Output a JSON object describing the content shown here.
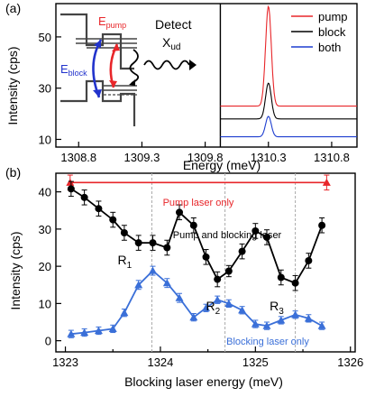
{
  "chart_data": [
    {
      "panel_label": "(a)",
      "type": "line",
      "xlabel": "Energy (meV)",
      "ylabel": "Intensity (cps)",
      "ylim": [
        7,
        63
      ],
      "y_ticks": [
        10,
        30,
        50
      ],
      "x_ticks": [
        "1308.8",
        "1309.3",
        "1309.8",
        "1310.3",
        "1310.8"
      ],
      "x_tick_values": [
        1308.8,
        1309.3,
        1309.8,
        1310.3,
        1310.8
      ],
      "xlim": [
        1308.62,
        1311.0
      ],
      "inset_xlim": [
        1309.92,
        1311.0
      ],
      "legend": {
        "position": "top-right"
      },
      "series": [
        {
          "name": "pump",
          "color": "#e8262a",
          "base": 23,
          "peak": 62
        },
        {
          "name": "block",
          "color": "#000000",
          "base": 18,
          "peak": 32
        },
        {
          "name": "both",
          "color": "#1f3fd0",
          "base": 11,
          "peak": 19
        }
      ],
      "peak_center": 1310.3,
      "inset_labels": {
        "detect": "Detect",
        "xud": "X",
        "xud_sub": "ud",
        "epump": "E",
        "epump_sub": "pump",
        "eblock": "E",
        "eblock_sub": "block"
      }
    },
    {
      "panel_label": "(b)",
      "type": "line",
      "xlabel": "Blocking laser energy (meV)",
      "ylabel": "Intensity (cps)",
      "xlim": [
        1322.9,
        1326.05
      ],
      "ylim": [
        -3,
        45
      ],
      "x_ticks": [
        "1323",
        "1324",
        "1325",
        "1326"
      ],
      "x_tick_values": [
        1323,
        1324,
        1325,
        1326
      ],
      "y_ticks": [
        "0",
        "10",
        "20",
        "30",
        "40"
      ],
      "y_tick_values": [
        0,
        10,
        20,
        30,
        40
      ],
      "vlines": [
        1323.91,
        1324.68,
        1325.42
      ],
      "annotations": [
        {
          "label": "R",
          "sub": "1",
          "x": 1323.55,
          "y": 20.5
        },
        {
          "label": "R",
          "sub": "2",
          "x": 1324.48,
          "y": 8.2
        },
        {
          "label": "R",
          "sub": "3",
          "x": 1325.15,
          "y": 8.2
        }
      ],
      "series": [
        {
          "name": "Pump laser only",
          "color": "#e8262a",
          "x": [
            1323.05,
            1325.75
          ],
          "y": [
            42.5,
            42.5
          ],
          "err": [
            2.0,
            2.0
          ]
        },
        {
          "name": "Pump and blocking laser",
          "color": "#000000",
          "x": [
            1323.06,
            1323.2,
            1323.35,
            1323.5,
            1323.62,
            1323.77,
            1323.92,
            1324.07,
            1324.2,
            1324.35,
            1324.48,
            1324.6,
            1324.72,
            1324.86,
            1325.0,
            1325.12,
            1325.27,
            1325.42,
            1325.56,
            1325.7
          ],
          "y": [
            40.8,
            38.5,
            35.5,
            32.5,
            29.0,
            26.3,
            26.3,
            25.0,
            34.5,
            31.0,
            22.5,
            16.5,
            18.7,
            24.0,
            29.5,
            27.8,
            17.0,
            15.5,
            21.5,
            31.0
          ],
          "err": [
            2,
            2,
            2,
            2,
            2,
            2,
            2,
            2,
            2,
            2,
            2,
            2,
            1.5,
            2,
            2,
            2,
            2,
            2,
            2,
            2
          ]
        },
        {
          "name": "Blocking laser only",
          "color": "#3a6fd8",
          "x": [
            1323.06,
            1323.2,
            1323.35,
            1323.5,
            1323.62,
            1323.77,
            1323.92,
            1324.07,
            1324.2,
            1324.35,
            1324.48,
            1324.6,
            1324.72,
            1324.86,
            1325.0,
            1325.12,
            1325.27,
            1325.42,
            1325.56,
            1325.7
          ],
          "y": [
            1.8,
            2.2,
            2.7,
            3.2,
            7.5,
            15.0,
            18.8,
            15.5,
            11.5,
            6.3,
            8.8,
            11.0,
            10.0,
            8.2,
            4.5,
            4.0,
            5.5,
            7.0,
            6.0,
            4.0
          ],
          "err": [
            1,
            1,
            1,
            1,
            1,
            1.2,
            1.2,
            1.2,
            1.2,
            1,
            1,
            1,
            1,
            1,
            1,
            1,
            1,
            1,
            1,
            1
          ]
        }
      ]
    }
  ]
}
